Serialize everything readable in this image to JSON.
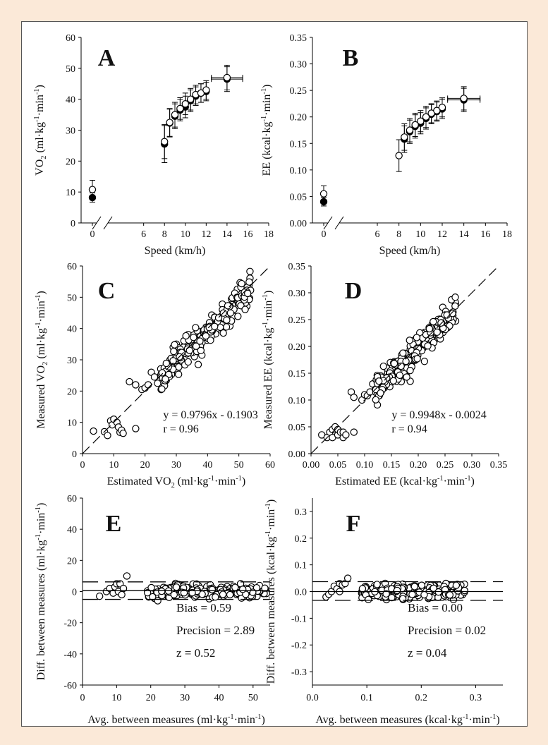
{
  "chart_data": [
    {
      "type": "scatter",
      "panel_letter": "A",
      "xlabel": "Speed (km/h)",
      "ylabel": "VO2 (ml·kg-1·min-1)",
      "ylabel_parts": [
        "VO",
        "2",
        " (ml·kg",
        "-1",
        "·min",
        "-1",
        ")"
      ],
      "xlim": [
        0,
        18
      ],
      "ylim": [
        0,
        60
      ],
      "xticks": [
        6,
        8,
        10,
        12,
        14,
        16,
        18
      ],
      "x_break_tick": 0,
      "yticks": [
        0,
        10,
        20,
        30,
        40,
        50,
        60
      ],
      "ytick_labels": [
        "0",
        "10",
        "20",
        "30",
        "40",
        "50",
        "60"
      ],
      "series": [
        {
          "marker": "filled",
          "points": [
            {
              "x": 0,
              "y": 8.2,
              "err": 1.5
            },
            {
              "x": 8,
              "y": 25.5,
              "err": 6.0
            },
            {
              "x": 8.5,
              "y": 32.3,
              "err": 4.5
            },
            {
              "x": 9,
              "y": 34.5,
              "err": 4.0
            },
            {
              "x": 9.5,
              "y": 36.5,
              "err": 3.5
            },
            {
              "x": 10,
              "y": 37.5,
              "err": 3.5
            },
            {
              "x": 10.5,
              "y": 39.5,
              "err": 3.5
            },
            {
              "x": 11,
              "y": 41.0,
              "err": 3.0
            },
            {
              "x": 11.5,
              "y": 42.0,
              "err": 3.0
            },
            {
              "x": 12,
              "y": 42.5,
              "err": 3.0
            },
            {
              "x": 14,
              "y": 46.5,
              "err": 4.0,
              "xerr": 1.5
            }
          ]
        },
        {
          "marker": "open",
          "points": [
            {
              "x": 0,
              "y": 10.8,
              "err": 3.0
            },
            {
              "x": 8,
              "y": 26.3,
              "err": 5.5
            },
            {
              "x": 8.5,
              "y": 32.5,
              "err": 4.5
            },
            {
              "x": 9,
              "y": 35.0,
              "err": 4.0
            },
            {
              "x": 9.5,
              "y": 37.0,
              "err": 3.5
            },
            {
              "x": 10,
              "y": 38.5,
              "err": 3.5
            },
            {
              "x": 10.5,
              "y": 40.0,
              "err": 3.5
            },
            {
              "x": 11,
              "y": 41.5,
              "err": 3.0
            },
            {
              "x": 11.5,
              "y": 42.0,
              "err": 3.0
            },
            {
              "x": 12,
              "y": 43.0,
              "err": 3.0
            },
            {
              "x": 14,
              "y": 47.0,
              "err": 4.0,
              "xerr": 1.5
            }
          ]
        }
      ]
    },
    {
      "type": "scatter",
      "panel_letter": "B",
      "xlabel": "Speed (km/h)",
      "ylabel": "EE (kcal·kg-1·min-1)",
      "ylabel_parts": [
        "EE  (kcal·kg",
        "-1",
        "·min",
        "-1",
        ")"
      ],
      "xlim": [
        0,
        18
      ],
      "ylim": [
        0,
        0.35
      ],
      "xticks": [
        6,
        8,
        10,
        12,
        14,
        16,
        18
      ],
      "x_break_tick": 0,
      "yticks": [
        0,
        0.05,
        0.1,
        0.15,
        0.2,
        0.25,
        0.3,
        0.35
      ],
      "ytick_labels": [
        "0.00",
        "0.05",
        "0.10",
        "0.15",
        "0.20",
        "0.25",
        "0.30",
        "0.35"
      ],
      "series": [
        {
          "marker": "filled",
          "points": [
            {
              "x": 0,
              "y": 0.04,
              "err": 0.008
            },
            {
              "x": 8.5,
              "y": 0.158,
              "err": 0.025
            },
            {
              "x": 9,
              "y": 0.172,
              "err": 0.022
            },
            {
              "x": 9.5,
              "y": 0.182,
              "err": 0.022
            },
            {
              "x": 10,
              "y": 0.188,
              "err": 0.02
            },
            {
              "x": 10.5,
              "y": 0.197,
              "err": 0.02
            },
            {
              "x": 11,
              "y": 0.205,
              "err": 0.018
            },
            {
              "x": 11.5,
              "y": 0.21,
              "err": 0.018
            },
            {
              "x": 12,
              "y": 0.215,
              "err": 0.018
            },
            {
              "x": 14,
              "y": 0.232,
              "err": 0.022,
              "xerr": 1.5
            }
          ]
        },
        {
          "marker": "open",
          "points": [
            {
              "x": 0,
              "y": 0.055,
              "err": 0.015
            },
            {
              "x": 8,
              "y": 0.127,
              "err": 0.03
            },
            {
              "x": 8.5,
              "y": 0.162,
              "err": 0.025
            },
            {
              "x": 9,
              "y": 0.175,
              "err": 0.022
            },
            {
              "x": 9.5,
              "y": 0.185,
              "err": 0.022
            },
            {
              "x": 10,
              "y": 0.192,
              "err": 0.02
            },
            {
              "x": 10.5,
              "y": 0.2,
              "err": 0.02
            },
            {
              "x": 11,
              "y": 0.207,
              "err": 0.018
            },
            {
              "x": 11.5,
              "y": 0.212,
              "err": 0.018
            },
            {
              "x": 12,
              "y": 0.218,
              "err": 0.018
            },
            {
              "x": 14,
              "y": 0.235,
              "err": 0.022,
              "xerr": 1.5
            }
          ]
        }
      ]
    },
    {
      "type": "scatter",
      "panel_letter": "C",
      "xlabel": "Estimated VO2 (ml·kg-1·min-1)",
      "xlabel_parts": [
        "Estimated VO",
        "2",
        " (ml·kg",
        "-1",
        "·min",
        "-1",
        ")"
      ],
      "ylabel": "Measured VO2 (ml·kg-1·min-1)",
      "ylabel_parts": [
        "Measured VO",
        "2",
        " (ml·kg",
        "-1",
        "·min",
        "-1",
        ")"
      ],
      "xlim": [
        0,
        60
      ],
      "ylim": [
        0,
        60
      ],
      "xticks": [
        0,
        10,
        20,
        30,
        40,
        50,
        60
      ],
      "xtick_labels": [
        "0",
        "10",
        "20",
        "30",
        "40",
        "50",
        "60"
      ],
      "yticks": [
        0,
        10,
        20,
        30,
        40,
        50,
        60
      ],
      "ytick_labels": [
        "0",
        "10",
        "20",
        "30",
        "40",
        "50",
        "60"
      ],
      "identity_line": true,
      "equation": "y = 0.9796x - 0.1903",
      "r_text": "r = 0.96",
      "low_points": [
        [
          3.5,
          7.2
        ],
        [
          7,
          7
        ],
        [
          8,
          5.8
        ],
        [
          9,
          10.5
        ],
        [
          9.5,
          9.2
        ],
        [
          10,
          11
        ],
        [
          11,
          10
        ],
        [
          11.5,
          8.5
        ],
        [
          12,
          6.8
        ],
        [
          12.5,
          7.5
        ],
        [
          13,
          6.5
        ],
        [
          17,
          8
        ]
      ],
      "mid_points": [
        [
          15,
          23
        ],
        [
          17,
          22
        ],
        [
          19,
          20.5
        ],
        [
          20,
          21
        ],
        [
          21,
          22
        ],
        [
          22,
          26
        ],
        [
          23,
          24.5
        ],
        [
          24,
          22.5
        ],
        [
          25,
          25
        ],
        [
          26,
          27
        ],
        [
          27,
          26
        ],
        [
          28,
          30
        ],
        [
          29,
          34
        ],
        [
          30,
          35
        ],
        [
          37,
          28.5
        ]
      ],
      "cloud": {
        "x_from": 25,
        "x_to": 54,
        "n": 230,
        "slope": 0.9796,
        "intercept": -0.1903,
        "spread": 3.2
      }
    },
    {
      "type": "scatter",
      "panel_letter": "D",
      "xlabel": "Estimated EE (kcal·kg-1·min-1)",
      "xlabel_parts": [
        "Estimated EE (kcal·kg",
        "-1",
        "·min",
        "-1",
        ")"
      ],
      "ylabel": "Measured EE (kcal·kg-1·min-1)",
      "ylabel_parts": [
        "Measured EE (kcal·kg",
        "-1",
        "·min",
        "-1",
        ")"
      ],
      "xlim": [
        0,
        0.35
      ],
      "ylim": [
        0,
        0.35
      ],
      "xticks": [
        0,
        0.05,
        0.1,
        0.15,
        0.2,
        0.25,
        0.3,
        0.35
      ],
      "xtick_labels": [
        "0.00",
        "0.05",
        "0.10",
        "0.15",
        "0.20",
        "0.25",
        "0.30",
        "0.35"
      ],
      "yticks": [
        0,
        0.05,
        0.1,
        0.15,
        0.2,
        0.25,
        0.3,
        0.35
      ],
      "ytick_labels": [
        "0.00",
        "0.05",
        "0.10",
        "0.15",
        "0.20",
        "0.25",
        "0.30",
        "0.35"
      ],
      "identity_line": true,
      "equation": "y = 0.9948x - 0.0024",
      "r_text": "r = 0.94",
      "low_points": [
        [
          0.02,
          0.035
        ],
        [
          0.03,
          0.03
        ],
        [
          0.035,
          0.04
        ],
        [
          0.04,
          0.045
        ],
        [
          0.04,
          0.03
        ],
        [
          0.045,
          0.05
        ],
        [
          0.05,
          0.035
        ],
        [
          0.05,
          0.045
        ],
        [
          0.055,
          0.04
        ],
        [
          0.06,
          0.03
        ],
        [
          0.06,
          0.04
        ],
        [
          0.065,
          0.035
        ],
        [
          0.08,
          0.04
        ]
      ],
      "mid_points": [
        [
          0.075,
          0.115
        ],
        [
          0.08,
          0.105
        ],
        [
          0.095,
          0.1
        ],
        [
          0.1,
          0.11
        ],
        [
          0.105,
          0.108
        ],
        [
          0.11,
          0.115
        ],
        [
          0.115,
          0.13
        ],
        [
          0.12,
          0.12
        ],
        [
          0.125,
          0.14
        ],
        [
          0.13,
          0.145
        ],
        [
          0.185,
          0.135
        ]
      ],
      "cloud": {
        "x_from": 0.12,
        "x_to": 0.27,
        "n": 260,
        "slope": 0.9948,
        "intercept": -0.0024,
        "spread": 0.018
      }
    },
    {
      "type": "scatter",
      "panel_letter": "E",
      "xlabel": "Avg. between measures (ml·kg-1·min-1)",
      "xlabel_parts": [
        "Avg. between measures (ml·kg",
        "-1",
        "·min",
        "-1",
        ")"
      ],
      "ylabel": "Diff. between measures (ml·kg-1·min-1)",
      "ylabel_parts": [
        "Diff. between measures (ml·kg",
        "-1",
        "·min",
        "-1",
        ")"
      ],
      "xlim": [
        0,
        55
      ],
      "ylim": [
        -60,
        60
      ],
      "xticks": [
        0,
        10,
        20,
        30,
        40,
        50
      ],
      "xtick_labels": [
        "0",
        "10",
        "20",
        "30",
        "40",
        "50"
      ],
      "yticks": [
        -60,
        -40,
        -20,
        0,
        20,
        40,
        60
      ],
      "ytick_labels": [
        "-60",
        "-40",
        "-20",
        "0",
        "20",
        "40",
        "60"
      ],
      "bias": 0.59,
      "upper_limit": 6.2,
      "lower_limit": -5.0,
      "stats": [
        "Bias = 0.59",
        "Precision = 2.89",
        "z = 0.52"
      ],
      "low_points": [
        [
          5,
          -3
        ],
        [
          7,
          0
        ],
        [
          8,
          2
        ],
        [
          9,
          -1
        ],
        [
          9.5,
          3
        ],
        [
          10,
          5
        ],
        [
          10.5,
          0
        ],
        [
          11,
          5
        ],
        [
          11.5,
          -2
        ],
        [
          12,
          2
        ],
        [
          13,
          10
        ]
      ],
      "cloud": {
        "x_from": 19,
        "x_to": 54,
        "n": 230,
        "spread": 2.9
      }
    },
    {
      "type": "scatter",
      "panel_letter": "F",
      "xlabel": "Avg. between measures (kcal·kg-1·min-1)",
      "xlabel_parts": [
        "Avg. between measures (kcal·kg",
        "-1",
        "·min",
        "-1",
        ")"
      ],
      "ylabel": "Diff. between measures (kcal·kg-1·min-1)",
      "ylabel_parts": [
        "Diff. between measures (kcal·kg",
        "-1",
        "·min",
        "-1",
        ")"
      ],
      "xlim": [
        0,
        0.35
      ],
      "ylim": [
        -0.35,
        0.35
      ],
      "xticks": [
        0,
        0.1,
        0.2,
        0.3
      ],
      "xtick_labels": [
        "0.0",
        "0.1",
        "0.2",
        "0.3"
      ],
      "yticks": [
        -0.3,
        -0.2,
        -0.1,
        0,
        0.1,
        0.2,
        0.3
      ],
      "ytick_labels": [
        "-0.3",
        "-0.2",
        "-0.1",
        "0.0",
        "0.1",
        "0.2",
        "0.3"
      ],
      "bias": 0.0,
      "upper_limit": 0.037,
      "lower_limit": -0.033,
      "stats": [
        "Bias = 0.00",
        "Precision = 0.02",
        "z = 0.04"
      ],
      "low_points": [
        [
          0.025,
          -0.02
        ],
        [
          0.03,
          -0.01
        ],
        [
          0.035,
          0.0
        ],
        [
          0.04,
          0.02
        ],
        [
          0.045,
          0.01
        ],
        [
          0.05,
          0.03
        ],
        [
          0.055,
          0.025
        ],
        [
          0.06,
          0.03
        ],
        [
          0.065,
          0.05
        ],
        [
          0.05,
          0.0
        ]
      ],
      "cloud": {
        "x_from": 0.09,
        "x_to": 0.28,
        "n": 250,
        "spread": 0.02
      }
    }
  ]
}
